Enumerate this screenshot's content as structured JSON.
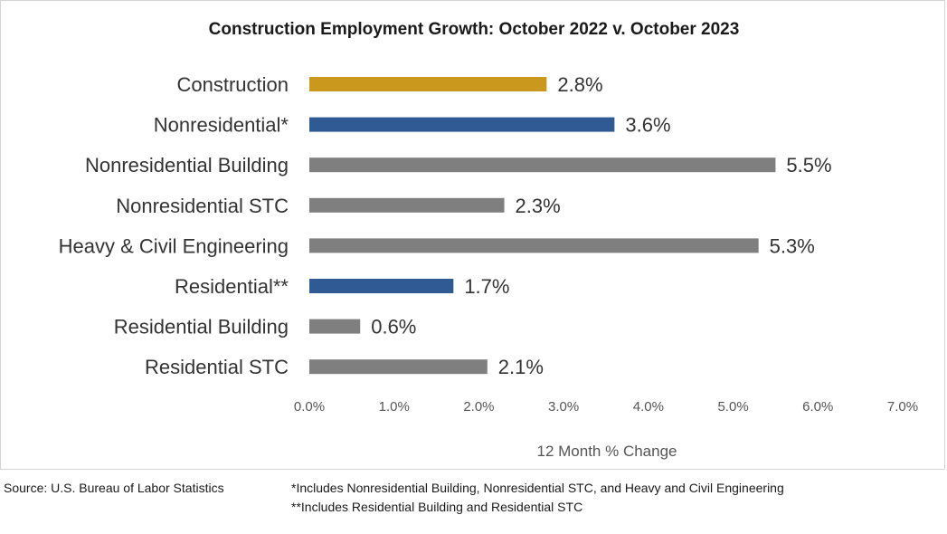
{
  "chart_data": {
    "type": "bar",
    "orientation": "horizontal",
    "title": "Construction Employment Growth: October 2022 v. October 2023",
    "xlabel": "12 Month % Change",
    "ylabel": "",
    "xlim": [
      0,
      7
    ],
    "tick_values": [
      0,
      1,
      2,
      3,
      4,
      5,
      6,
      7
    ],
    "tick_labels": [
      "0.0%",
      "1.0%",
      "2.0%",
      "3.0%",
      "4.0%",
      "5.0%",
      "6.0%",
      "7.0%"
    ],
    "grid": false,
    "categories": [
      "Construction",
      "Nonresidential*",
      "Nonresidential Building",
      "Nonresidential STC",
      "Heavy & Civil Engineering",
      "Residential**",
      "Residential Building",
      "Residential STC"
    ],
    "values": [
      2.8,
      3.6,
      5.5,
      2.3,
      5.3,
      1.7,
      0.6,
      2.1
    ],
    "value_labels": [
      "2.8%",
      "3.6%",
      "5.5%",
      "2.3%",
      "5.3%",
      "1.7%",
      "0.6%",
      "2.1%"
    ],
    "bar_colors": [
      "#c9981c",
      "#2f5a93",
      "#7f7f7f",
      "#7f7f7f",
      "#7f7f7f",
      "#2f5a93",
      "#7f7f7f",
      "#7f7f7f"
    ]
  },
  "notes": {
    "source": "Source:  U.S. Bureau of Labor Statistics",
    "footnote_1": "*Includes Nonresidential Building, Nonresidential STC, and Heavy and Civil Engineering",
    "footnote_2": "**Includes Residential Building and Residential STC"
  }
}
